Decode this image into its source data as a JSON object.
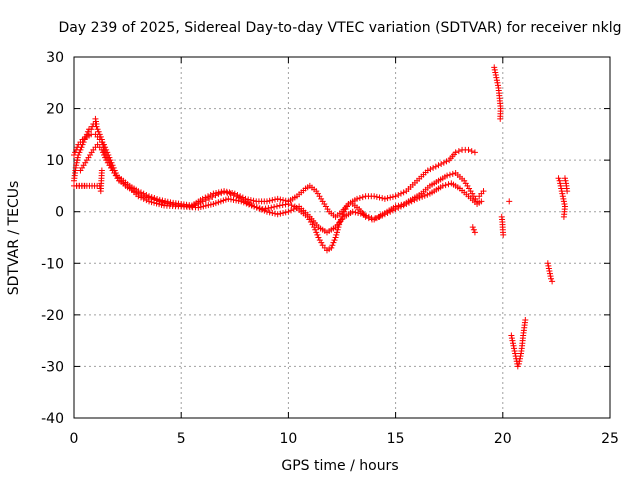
{
  "chart_data": {
    "type": "scatter",
    "title": "Day 239 of 2025, Sidereal Day-to-day VTEC variation (SDTVAR) for receiver nklg",
    "xlabel": "GPS time / hours",
    "ylabel": "SDTVAR / TECUs",
    "xlim": [
      0,
      25
    ],
    "ylim": [
      -40,
      30
    ],
    "xticks": [
      0,
      5,
      10,
      15,
      20,
      25
    ],
    "yticks": [
      -40,
      -30,
      -20,
      -10,
      0,
      10,
      20,
      30
    ],
    "grid": true,
    "marker": "+",
    "color": "#ff0000",
    "series": [
      {
        "name": "track-1",
        "points": [
          [
            0.0,
            6
          ],
          [
            0.1,
            9
          ],
          [
            0.2,
            11
          ],
          [
            0.3,
            12
          ],
          [
            0.4,
            13
          ],
          [
            0.5,
            14
          ],
          [
            0.6,
            15
          ],
          [
            0.7,
            16
          ],
          [
            0.8,
            16
          ],
          [
            0.9,
            17
          ],
          [
            1.0,
            17
          ],
          [
            1.1,
            16
          ],
          [
            1.2,
            15
          ],
          [
            1.3,
            14
          ],
          [
            1.4,
            12
          ],
          [
            1.5,
            11
          ],
          [
            1.6,
            10
          ],
          [
            1.7,
            9
          ],
          [
            1.8,
            8
          ],
          [
            1.9,
            7.5
          ],
          [
            2.0,
            7
          ],
          [
            2.2,
            6
          ],
          [
            2.4,
            5
          ],
          [
            2.6,
            4.5
          ],
          [
            2.8,
            4
          ],
          [
            3.0,
            3.5
          ],
          [
            3.3,
            3
          ],
          [
            3.6,
            2.5
          ],
          [
            4.0,
            2
          ],
          [
            4.5,
            1.5
          ],
          [
            5.0,
            1.2
          ],
          [
            5.5,
            1
          ],
          [
            5.8,
            1.5
          ],
          [
            6.0,
            2
          ],
          [
            6.3,
            2.5
          ],
          [
            6.6,
            3.2
          ],
          [
            7.0,
            3.8
          ],
          [
            7.3,
            3.5
          ],
          [
            7.6,
            3
          ],
          [
            8.0,
            2
          ],
          [
            8.4,
            1
          ],
          [
            8.8,
            0.5
          ],
          [
            9.2,
            0.8
          ],
          [
            9.6,
            1.2
          ],
          [
            10.0,
            1.5
          ],
          [
            10.3,
            1
          ],
          [
            10.6,
            0
          ],
          [
            10.9,
            -1
          ],
          [
            11.2,
            -3
          ],
          [
            11.4,
            -5
          ],
          [
            11.6,
            -6.5
          ],
          [
            11.8,
            -7.5
          ],
          [
            12.0,
            -7
          ],
          [
            12.2,
            -5
          ],
          [
            12.4,
            -2
          ],
          [
            12.6,
            0
          ],
          [
            12.8,
            1.5
          ],
          [
            13.0,
            1.5
          ],
          [
            13.3,
            0.5
          ],
          [
            13.6,
            -1
          ],
          [
            13.9,
            -1.5
          ],
          [
            14.2,
            -1
          ],
          [
            14.6,
            0
          ],
          [
            15.0,
            1
          ],
          [
            15.4,
            1.5
          ],
          [
            15.8,
            2.5
          ],
          [
            16.2,
            3.5
          ],
          [
            16.6,
            5
          ],
          [
            17.0,
            6
          ],
          [
            17.4,
            7
          ],
          [
            17.8,
            7.5
          ],
          [
            18.2,
            6
          ],
          [
            18.5,
            4
          ],
          [
            18.8,
            2
          ]
        ]
      },
      {
        "name": "track-2",
        "points": [
          [
            0.0,
            11
          ],
          [
            0.2,
            13
          ],
          [
            0.4,
            14
          ],
          [
            0.6,
            14.5
          ],
          [
            0.8,
            15
          ],
          [
            1.0,
            15
          ],
          [
            1.2,
            14
          ],
          [
            1.4,
            13
          ],
          [
            1.6,
            11
          ],
          [
            1.8,
            9
          ],
          [
            2.0,
            7
          ],
          [
            2.3,
            6
          ],
          [
            2.6,
            5
          ],
          [
            3.0,
            4
          ],
          [
            3.5,
            3
          ],
          [
            4.0,
            2.3
          ],
          [
            4.5,
            1.8
          ],
          [
            5.0,
            1.5
          ],
          [
            5.5,
            1.2
          ],
          [
            6.0,
            2.5
          ],
          [
            6.5,
            3.5
          ],
          [
            7.0,
            4
          ],
          [
            7.5,
            3.5
          ],
          [
            8.0,
            2.5
          ],
          [
            8.5,
            2
          ],
          [
            9.0,
            2
          ],
          [
            9.5,
            2.5
          ],
          [
            10.0,
            2
          ],
          [
            10.4,
            3
          ],
          [
            10.8,
            4.5
          ],
          [
            11.0,
            5
          ],
          [
            11.3,
            4
          ],
          [
            11.6,
            2
          ],
          [
            11.9,
            0
          ],
          [
            12.2,
            -1
          ],
          [
            12.5,
            0
          ],
          [
            12.8,
            1.5
          ],
          [
            13.2,
            2.5
          ],
          [
            13.6,
            3
          ],
          [
            14.0,
            3
          ],
          [
            14.5,
            2.5
          ],
          [
            15.0,
            3
          ],
          [
            15.5,
            4
          ],
          [
            16.0,
            6
          ],
          [
            16.5,
            8
          ],
          [
            17.0,
            9
          ],
          [
            17.5,
            10
          ],
          [
            17.8,
            11.5
          ],
          [
            18.1,
            12
          ],
          [
            18.4,
            12
          ],
          [
            18.7,
            11.5
          ]
        ]
      },
      {
        "name": "track-3",
        "points": [
          [
            0.3,
            8
          ],
          [
            0.6,
            10
          ],
          [
            0.9,
            12
          ],
          [
            1.1,
            13
          ],
          [
            1.3,
            12
          ],
          [
            1.5,
            10
          ],
          [
            1.8,
            8
          ],
          [
            2.1,
            6
          ],
          [
            2.5,
            5
          ],
          [
            3.0,
            3
          ],
          [
            3.5,
            2
          ],
          [
            4.2,
            1.2
          ],
          [
            5.0,
            1
          ],
          [
            5.8,
            0.8
          ],
          [
            6.5,
            1.5
          ],
          [
            7.2,
            2.5
          ],
          [
            7.8,
            2
          ],
          [
            8.4,
            1
          ],
          [
            9.0,
            0
          ],
          [
            9.5,
            -0.5
          ],
          [
            10.0,
            0
          ],
          [
            10.5,
            1
          ],
          [
            11.0,
            -1
          ],
          [
            11.4,
            -3
          ],
          [
            11.8,
            -4
          ],
          [
            12.2,
            -3
          ],
          [
            12.6,
            -1
          ],
          [
            13.0,
            0
          ],
          [
            13.5,
            -0.5
          ],
          [
            14.0,
            -1.5
          ],
          [
            14.5,
            -0.5
          ],
          [
            15.0,
            0.5
          ],
          [
            15.5,
            1.5
          ],
          [
            16.0,
            2.5
          ],
          [
            16.6,
            3.5
          ],
          [
            17.2,
            5
          ],
          [
            17.6,
            5.5
          ],
          [
            18.0,
            4.5
          ],
          [
            18.4,
            3
          ],
          [
            18.8,
            1.5
          ],
          [
            19.0,
            2
          ]
        ]
      },
      {
        "name": "outliers",
        "points": [
          [
            1.0,
            18
          ],
          [
            1.05,
            17
          ],
          [
            0.5,
            5
          ],
          [
            0.0,
            5
          ],
          [
            1.2,
            5
          ],
          [
            1.25,
            4
          ],
          [
            1.3,
            8
          ],
          [
            18.6,
            -3
          ],
          [
            18.7,
            -4
          ],
          [
            18.9,
            3
          ],
          [
            19.1,
            4
          ]
        ]
      },
      {
        "name": "segment-a",
        "points": [
          [
            19.6,
            28
          ],
          [
            19.65,
            27
          ],
          [
            19.7,
            26
          ],
          [
            19.75,
            25
          ],
          [
            19.8,
            24
          ],
          [
            19.85,
            22
          ],
          [
            19.9,
            20
          ],
          [
            19.88,
            18
          ]
        ]
      },
      {
        "name": "segment-b",
        "points": [
          [
            19.95,
            -1
          ],
          [
            19.98,
            -2
          ],
          [
            20.0,
            -3.5
          ],
          [
            20.02,
            -4.5
          ]
        ]
      },
      {
        "name": "segment-c",
        "points": [
          [
            20.3,
            2
          ]
        ]
      },
      {
        "name": "segment-d",
        "points": [
          [
            20.4,
            -24
          ],
          [
            20.45,
            -25
          ],
          [
            20.5,
            -26
          ],
          [
            20.55,
            -27
          ],
          [
            20.6,
            -28
          ],
          [
            20.65,
            -29
          ],
          [
            20.7,
            -30
          ],
          [
            20.75,
            -29.5
          ],
          [
            20.8,
            -28.5
          ],
          [
            20.85,
            -27.5
          ],
          [
            20.9,
            -26
          ],
          [
            20.95,
            -24
          ],
          [
            21.0,
            -22.5
          ],
          [
            21.05,
            -21
          ]
        ]
      },
      {
        "name": "segment-e",
        "points": [
          [
            22.1,
            -10
          ],
          [
            22.15,
            -11
          ],
          [
            22.2,
            -12
          ],
          [
            22.25,
            -13
          ],
          [
            22.3,
            -13.5
          ]
        ]
      },
      {
        "name": "segment-f",
        "points": [
          [
            22.6,
            6.5
          ],
          [
            22.65,
            6
          ],
          [
            22.7,
            5
          ],
          [
            22.75,
            4
          ],
          [
            22.8,
            3
          ],
          [
            22.85,
            2
          ],
          [
            22.9,
            1
          ],
          [
            22.85,
            -1
          ],
          [
            22.9,
            6.5
          ],
          [
            22.95,
            5.5
          ],
          [
            23.0,
            4
          ]
        ]
      }
    ]
  }
}
